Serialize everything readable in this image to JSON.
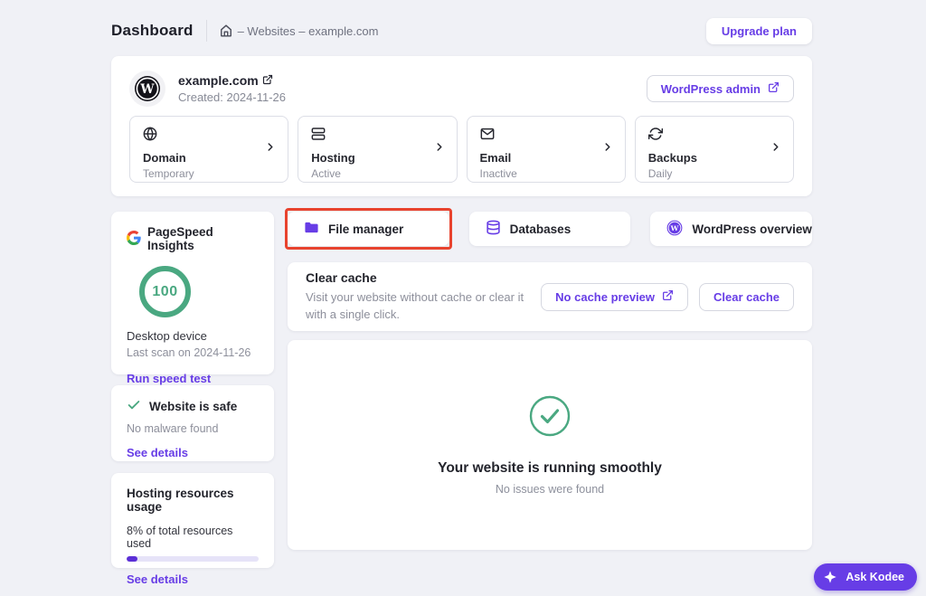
{
  "header": {
    "title": "Dashboard",
    "breadcrumb": "– Websites – example.com",
    "upgrade_label": "Upgrade plan"
  },
  "site_card": {
    "domain": "example.com",
    "created": "Created: 2024-11-26",
    "admin_button": "WordPress admin",
    "tiles": [
      {
        "label": "Domain",
        "status": "Temporary",
        "icon": "globe-icon"
      },
      {
        "label": "Hosting",
        "status": "Active",
        "icon": "server-icon"
      },
      {
        "label": "Email",
        "status": "Inactive",
        "icon": "envelope-icon"
      },
      {
        "label": "Backups",
        "status": "Daily",
        "icon": "backup-refresh-icon"
      }
    ]
  },
  "pagespeed": {
    "title": "PageSpeed Insights",
    "score": "100",
    "device": "Desktop device",
    "last_scan": "Last scan on 2024-11-26",
    "action": "Run speed test",
    "logo_icon": "google-g-icon"
  },
  "quick_actions": [
    {
      "label": "File manager",
      "icon": "folder-icon",
      "highlighted": true
    },
    {
      "label": "Databases",
      "icon": "database-icon",
      "highlighted": false
    },
    {
      "label": "WordPress overview",
      "icon": "wordpress-icon",
      "highlighted": false
    }
  ],
  "clear_cache": {
    "title": "Clear cache",
    "description": "Visit your website without cache or clear it with a single click.",
    "preview_button": "No cache preview",
    "clear_button": "Clear cache"
  },
  "status_card": {
    "title": "Your website is running smoothly",
    "subtitle": "No issues were found",
    "icon": "check-circle-icon"
  },
  "security_card": {
    "title": "Website is safe",
    "subtitle": "No malware found",
    "action": "See details",
    "icon": "check-icon"
  },
  "resources_card": {
    "title": "Hosting resources usage",
    "usage_text": "8% of total resources used",
    "usage_percent": 8,
    "action": "See details"
  },
  "kodee": {
    "label": "Ask Kodee",
    "icon": "kodee-spark-icon"
  },
  "colors": {
    "accent_purple": "#673de6",
    "success_green": "#4aa881",
    "highlight_red": "#e8432e",
    "progress_fill": "#5b2fd6",
    "progress_track": "#e6e3f8",
    "background": "#f0f1f6"
  }
}
